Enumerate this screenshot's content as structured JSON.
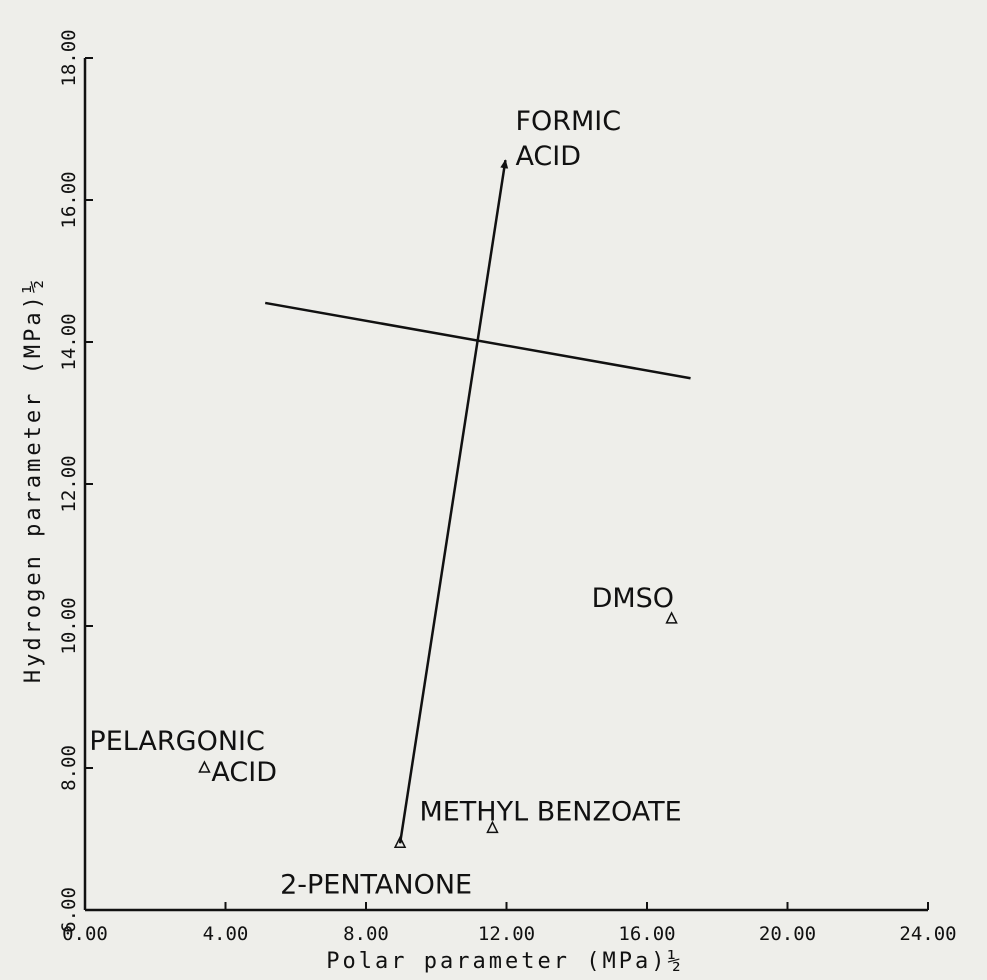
{
  "chart_data": {
    "type": "scatter",
    "x_label": "Polar parameter (MPa)½",
    "y_label": "Hydrogen parameter (MPa)½",
    "xlim": [
      0,
      24
    ],
    "ylim": [
      6,
      18
    ],
    "xticks": [
      {
        "value": 0,
        "label": "0.00"
      },
      {
        "value": 4,
        "label": "4.00"
      },
      {
        "value": 8,
        "label": "8.00"
      },
      {
        "value": 12,
        "label": "12.00"
      },
      {
        "value": 16,
        "label": "16.00"
      },
      {
        "value": 20,
        "label": "20.00"
      },
      {
        "value": 24,
        "label": "24.00"
      }
    ],
    "yticks": [
      {
        "value": 6,
        "label": "6.00"
      },
      {
        "value": 8,
        "label": "8.00"
      },
      {
        "value": 10,
        "label": "10.00"
      },
      {
        "value": 12,
        "label": "12.00"
      },
      {
        "value": 14,
        "label": "14.00"
      },
      {
        "value": 16,
        "label": "16.00"
      },
      {
        "value": 18,
        "label": "18.00"
      }
    ],
    "points": [
      {
        "label": [
          "PELARGONIC",
          "ACID"
        ],
        "x": 3.4,
        "y": 8.0
      },
      {
        "label": [
          "METHYL BENZOATE"
        ],
        "x": 11.6,
        "y": 7.15
      },
      {
        "label": [
          "2-PENTANONE"
        ],
        "x": 8.97,
        "y": 6.94
      },
      {
        "label": [
          "DMSO"
        ],
        "x": 16.7,
        "y": 10.1
      }
    ],
    "arrow": {
      "label": [
        "FORMIC",
        "ACID"
      ],
      "x": [
        8.97,
        11.97
      ],
      "y": [
        6.94,
        16.56
      ]
    },
    "line": {
      "x": [
        5.13,
        17.24
      ],
      "y": [
        14.55,
        13.49
      ]
    },
    "color": "#111111"
  }
}
